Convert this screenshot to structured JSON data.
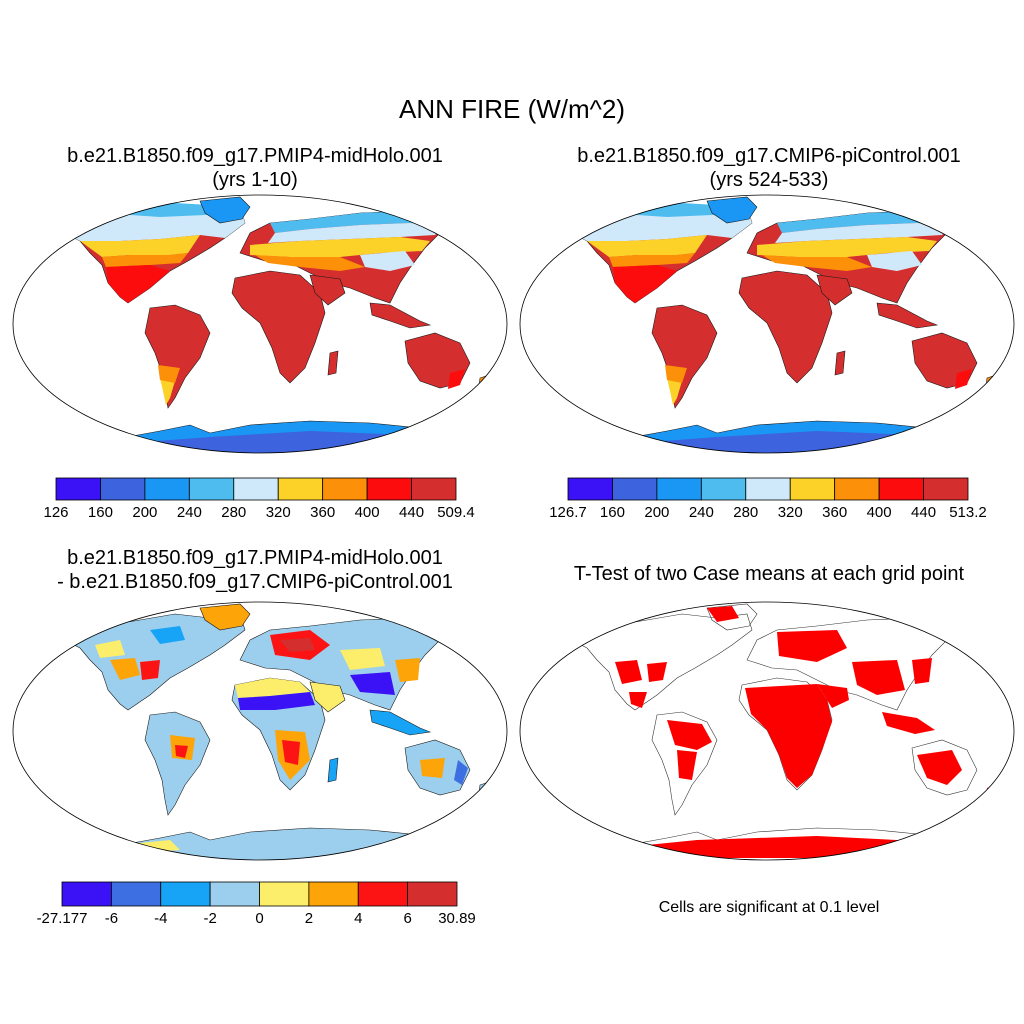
{
  "figure": {
    "title": "ANN FIRE (W/m^2)",
    "panels": [
      {
        "title_line1": "b.e21.B1850.f09_g17.PMIP4-midHolo.001",
        "title_line2": "(yrs 1-10)",
        "colorbar": {
          "colors": [
            "#3a12f5",
            "#3d63de",
            "#1a97f5",
            "#4fbcf0",
            "#cfe9fa",
            "#fcd229",
            "#fc9008",
            "#fc0c0c",
            "#d42e2e"
          ],
          "labels": [
            "126",
            "160",
            "200",
            "240",
            "280",
            "320",
            "360",
            "400",
            "440",
            "509.4"
          ]
        }
      },
      {
        "title_line1": "b.e21.B1850.f09_g17.CMIP6-piControl.001",
        "title_line2": "(yrs 524-533)",
        "colorbar": {
          "colors": [
            "#3a12f5",
            "#3d63de",
            "#1a97f5",
            "#4fbcf0",
            "#cfe9fa",
            "#fcd229",
            "#fc9008",
            "#fc0c0c",
            "#d42e2e"
          ],
          "labels": [
            "126.7",
            "160",
            "200",
            "240",
            "280",
            "320",
            "360",
            "400",
            "440",
            "513.2"
          ]
        }
      },
      {
        "title_line1": "b.e21.B1850.f09_g17.PMIP4-midHolo.001",
        "title_line2": "- b.e21.B1850.f09_g17.CMIP6-piControl.001",
        "colorbar": {
          "colors": [
            "#3a12f5",
            "#3d6fe3",
            "#17a4f7",
            "#9ccfed",
            "#fcee6a",
            "#fca408",
            "#fc1414",
            "#d42e2e"
          ],
          "labels": [
            "-27.177",
            "-6",
            "-4",
            "-2",
            "0",
            "2",
            "4",
            "6",
            "30.89"
          ]
        }
      },
      {
        "title_line1": "T-Test of two Case means at each grid point",
        "note": "Cells are significant at 0.1 level",
        "significant_color": "#fc0000"
      }
    ]
  }
}
